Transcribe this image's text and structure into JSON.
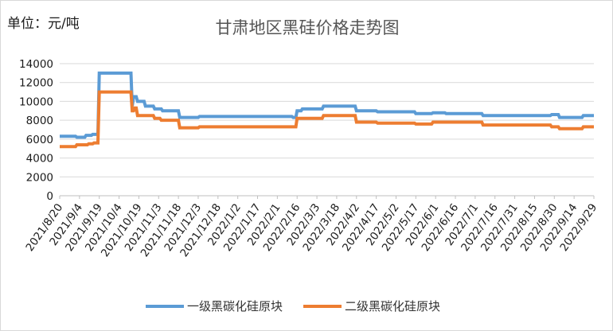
{
  "unit_label": "单位：元/吨",
  "chart_data": {
    "type": "line",
    "title": "甘肃地区黑硅价格走势图",
    "xlabel": "",
    "ylabel": "",
    "ylim": [
      0,
      14000
    ],
    "yticks": [
      0,
      2000,
      4000,
      6000,
      8000,
      10000,
      12000,
      14000
    ],
    "xlim": [
      "2021-08-20",
      "2022-09-29"
    ],
    "xtick_labels": [
      "2021/8/20",
      "2021/9/4",
      "2021/9/19",
      "2021/10/4",
      "2021/10/19",
      "2021/11/3",
      "2021/11/18",
      "2021/12/3",
      "2021/12/18",
      "2022/1/2",
      "2022/1/17",
      "2022/2/1",
      "2022/2/16",
      "2022/3/3",
      "2022/3/18",
      "2022/4/2",
      "2022/4/17",
      "2022/5/2",
      "2022/5/17",
      "2022/6/1",
      "2022/6/16",
      "2022/7/1",
      "2022/7/16",
      "2022/7/31",
      "2022/8/15",
      "2022/8/30",
      "2022/9/14",
      "2022/9/29"
    ],
    "grid": true,
    "legend_position": "bottom",
    "series": [
      {
        "name": "一级黑碳化硅原块",
        "color": "#5b9bd5",
        "points": [
          [
            "2021-08-20",
            6300
          ],
          [
            "2021-09-01",
            6300
          ],
          [
            "2021-09-02",
            6200
          ],
          [
            "2021-09-08",
            6200
          ],
          [
            "2021-09-09",
            6400
          ],
          [
            "2021-09-13",
            6400
          ],
          [
            "2021-09-14",
            6500
          ],
          [
            "2021-09-18",
            6500
          ],
          [
            "2021-09-19",
            13000
          ],
          [
            "2021-10-13",
            13000
          ],
          [
            "2021-10-14",
            9500
          ],
          [
            "2021-10-15",
            10500
          ],
          [
            "2021-10-17",
            10500
          ],
          [
            "2021-10-18",
            10000
          ],
          [
            "2021-10-23",
            10000
          ],
          [
            "2021-10-24",
            9500
          ],
          [
            "2021-10-30",
            9500
          ],
          [
            "2021-10-31",
            9200
          ],
          [
            "2021-11-05",
            9200
          ],
          [
            "2021-11-06",
            9000
          ],
          [
            "2021-11-18",
            9000
          ],
          [
            "2021-11-19",
            8300
          ],
          [
            "2021-12-03",
            8300
          ],
          [
            "2021-12-04",
            8400
          ],
          [
            "2022-02-12",
            8400
          ],
          [
            "2022-02-13",
            8300
          ],
          [
            "2022-02-15",
            8300
          ],
          [
            "2022-02-16",
            9000
          ],
          [
            "2022-02-19",
            9000
          ],
          [
            "2022-02-20",
            9200
          ],
          [
            "2022-03-07",
            9200
          ],
          [
            "2022-03-08",
            9500
          ],
          [
            "2022-04-01",
            9500
          ],
          [
            "2022-04-02",
            9000
          ],
          [
            "2022-04-17",
            9000
          ],
          [
            "2022-04-18",
            8900
          ],
          [
            "2022-05-16",
            8900
          ],
          [
            "2022-05-17",
            8700
          ],
          [
            "2022-05-29",
            8700
          ],
          [
            "2022-05-30",
            8800
          ],
          [
            "2022-06-08",
            8800
          ],
          [
            "2022-06-09",
            8700
          ],
          [
            "2022-07-06",
            8700
          ],
          [
            "2022-07-07",
            8500
          ],
          [
            "2022-08-27",
            8500
          ],
          [
            "2022-08-28",
            8600
          ],
          [
            "2022-09-02",
            8600
          ],
          [
            "2022-09-03",
            8300
          ],
          [
            "2022-09-20",
            8300
          ],
          [
            "2022-09-21",
            8500
          ],
          [
            "2022-09-29",
            8500
          ]
        ]
      },
      {
        "name": "二级黑碳化硅原块",
        "color": "#ed7d31",
        "points": [
          [
            "2021-08-20",
            5200
          ],
          [
            "2021-09-01",
            5200
          ],
          [
            "2021-09-02",
            5400
          ],
          [
            "2021-09-10",
            5400
          ],
          [
            "2021-09-11",
            5500
          ],
          [
            "2021-09-14",
            5500
          ],
          [
            "2021-09-15",
            5600
          ],
          [
            "2021-09-18",
            5600
          ],
          [
            "2021-09-19",
            11000
          ],
          [
            "2021-10-13",
            11000
          ],
          [
            "2021-10-14",
            9000
          ],
          [
            "2021-10-15",
            9000
          ],
          [
            "2021-10-16",
            9300
          ],
          [
            "2021-10-17",
            9300
          ],
          [
            "2021-10-18",
            8500
          ],
          [
            "2021-10-30",
            8500
          ],
          [
            "2021-10-31",
            8200
          ],
          [
            "2021-11-04",
            8200
          ],
          [
            "2021-11-05",
            8000
          ],
          [
            "2021-11-18",
            8000
          ],
          [
            "2021-11-19",
            7200
          ],
          [
            "2021-12-03",
            7200
          ],
          [
            "2021-12-04",
            7300
          ],
          [
            "2022-02-15",
            7300
          ],
          [
            "2022-02-16",
            8200
          ],
          [
            "2022-03-07",
            8200
          ],
          [
            "2022-03-08",
            8500
          ],
          [
            "2022-04-01",
            8500
          ],
          [
            "2022-04-02",
            7800
          ],
          [
            "2022-04-17",
            7800
          ],
          [
            "2022-04-18",
            7700
          ],
          [
            "2022-05-16",
            7700
          ],
          [
            "2022-05-17",
            7600
          ],
          [
            "2022-05-29",
            7600
          ],
          [
            "2022-05-30",
            7800
          ],
          [
            "2022-07-06",
            7800
          ],
          [
            "2022-07-07",
            7500
          ],
          [
            "2022-08-27",
            7500
          ],
          [
            "2022-08-28",
            7300
          ],
          [
            "2022-09-02",
            7300
          ],
          [
            "2022-09-03",
            7100
          ],
          [
            "2022-09-20",
            7100
          ],
          [
            "2022-09-21",
            7300
          ],
          [
            "2022-09-29",
            7300
          ]
        ]
      }
    ]
  }
}
